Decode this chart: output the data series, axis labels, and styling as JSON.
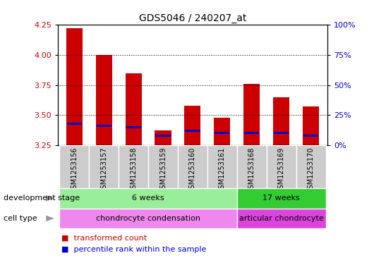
{
  "title": "GDS5046 / 240207_at",
  "samples": [
    "GSM1253156",
    "GSM1253157",
    "GSM1253158",
    "GSM1253159",
    "GSM1253160",
    "GSM1253161",
    "GSM1253168",
    "GSM1253169",
    "GSM1253170"
  ],
  "transformed_counts": [
    4.22,
    4.0,
    3.85,
    3.37,
    3.58,
    3.48,
    3.76,
    3.65,
    3.57
  ],
  "percentile_ranks": [
    3.43,
    3.41,
    3.4,
    3.33,
    3.37,
    3.35,
    3.35,
    3.35,
    3.33
  ],
  "ylim_left": [
    3.25,
    4.25
  ],
  "ylim_right": [
    0,
    100
  ],
  "yticks_left": [
    3.25,
    3.5,
    3.75,
    4.0,
    4.25
  ],
  "yticks_right": [
    0,
    25,
    50,
    75,
    100
  ],
  "bar_color": "#cc0000",
  "percentile_color": "#0000cc",
  "plot_bg": "#ffffff",
  "grid_color": "#000000",
  "xtick_bg": "#cccccc",
  "development_stage_label": "development stage",
  "cell_type_label": "cell type",
  "dev_stage_groups": [
    {
      "label": "6 weeks",
      "start": 0,
      "end": 6,
      "color": "#99ee99"
    },
    {
      "label": "17 weeks",
      "start": 6,
      "end": 9,
      "color": "#33cc33"
    }
  ],
  "cell_type_groups": [
    {
      "label": "chondrocyte condensation",
      "start": 0,
      "end": 6,
      "color": "#ee88ee"
    },
    {
      "label": "articular chondrocyte",
      "start": 6,
      "end": 9,
      "color": "#dd44dd"
    }
  ],
  "legend_items": [
    {
      "label": "transformed count",
      "color": "#cc0000"
    },
    {
      "label": "percentile rank within the sample",
      "color": "#0000cc"
    }
  ],
  "tick_label_color_left": "#cc0000",
  "tick_label_color_right": "#0000cc"
}
